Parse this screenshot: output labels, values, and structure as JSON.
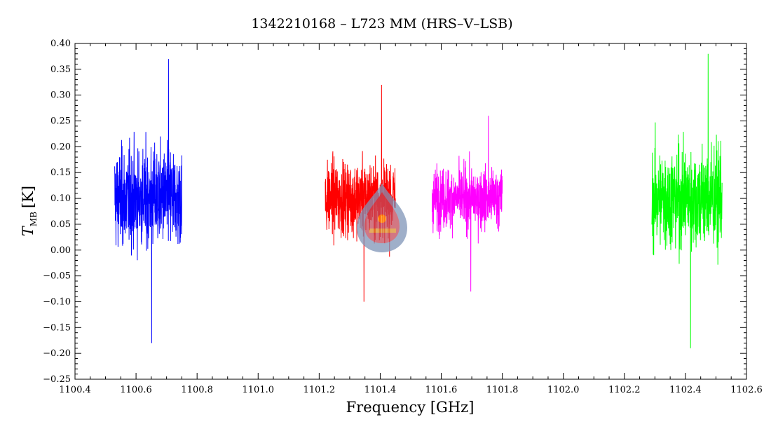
{
  "chart_data": {
    "type": "line",
    "title": "1342210168 – L723 MM (HRS–V–LSB)",
    "xlabel": "Frequency [GHz]",
    "ylabel": "T_MB [K]",
    "ylabel_main": "T",
    "ylabel_sub": "MB",
    "ylabel_unit": "[K]",
    "xlim": [
      1100.4,
      1102.6
    ],
    "ylim": [
      -0.25,
      0.4
    ],
    "x_ticks": [
      1100.4,
      1100.6,
      1100.8,
      1101.0,
      1101.2,
      1101.4,
      1101.6,
      1101.8,
      1102.0,
      1102.2,
      1102.4,
      1102.6
    ],
    "x_tick_labels": [
      "1100.4",
      "1100.6",
      "1100.8",
      "1101.0",
      "1101.2",
      "1101.4",
      "1101.6",
      "1101.8",
      "1102.0",
      "1102.2",
      "1102.4",
      "1102.6"
    ],
    "y_ticks": [
      -0.25,
      -0.2,
      -0.15,
      -0.1,
      -0.05,
      0.0,
      0.05,
      0.1,
      0.15,
      0.2,
      0.25,
      0.3,
      0.35,
      0.4
    ],
    "y_tick_labels": [
      "−0.25",
      "−0.20",
      "−0.15",
      "−0.10",
      "−0.05",
      "0.00",
      "0.05",
      "0.10",
      "0.15",
      "0.20",
      "0.25",
      "0.30",
      "0.35",
      "0.40"
    ],
    "grid": false,
    "series": [
      {
        "color": "#0000ff",
        "x_range": [
          1100.53,
          1100.75
        ],
        "mean": 0.1,
        "min": -0.18,
        "max": 0.37
      },
      {
        "color": "#ff0000",
        "x_range": [
          1101.22,
          1101.45
        ],
        "mean": 0.1,
        "min": -0.1,
        "max": 0.32
      },
      {
        "color": "#ff00ff",
        "x_range": [
          1101.57,
          1101.8
        ],
        "mean": 0.1,
        "min": -0.08,
        "max": 0.26
      },
      {
        "color": "#00ff00",
        "x_range": [
          1102.29,
          1102.52
        ],
        "mean": 0.1,
        "min": -0.19,
        "max": 0.38
      }
    ]
  }
}
